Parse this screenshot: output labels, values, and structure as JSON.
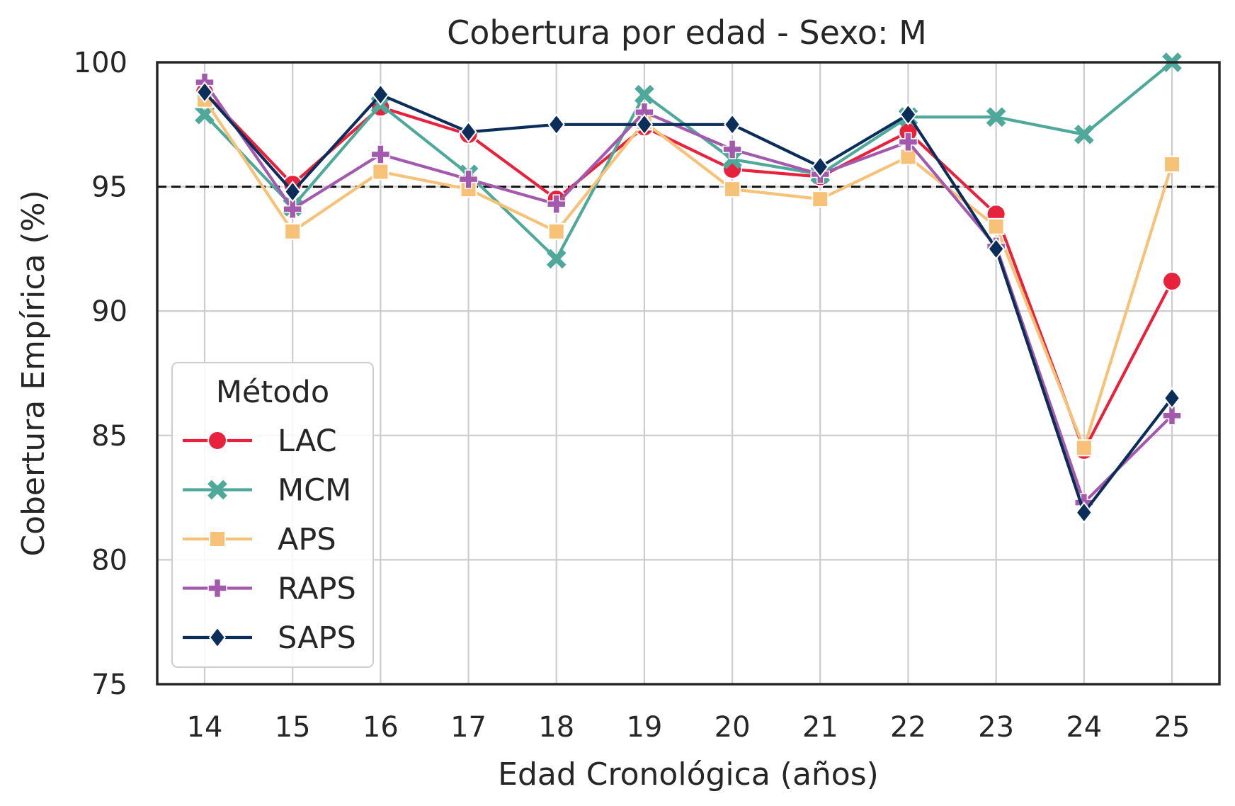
{
  "chart_data": {
    "type": "line",
    "title": "Cobertura por edad - Sexo: M",
    "xlabel": "Edad Cronológica (años)",
    "ylabel": "Cobertura Empírica (%)",
    "x": [
      14,
      15,
      16,
      17,
      18,
      19,
      20,
      21,
      22,
      23,
      24,
      25
    ],
    "x_tick_labels": [
      "14",
      "15",
      "16",
      "17",
      "18",
      "19",
      "20",
      "21",
      "22",
      "23",
      "24",
      "25"
    ],
    "yticks": [
      75,
      80,
      85,
      90,
      95,
      100
    ],
    "y_tick_labels": [
      "75",
      "80",
      "85",
      "90",
      "95",
      "100"
    ],
    "ylim": [
      75,
      100
    ],
    "reference_line": 95,
    "grid": true,
    "legend": {
      "title": "Método",
      "position": "lower-left"
    },
    "series": [
      {
        "name": "LAC",
        "color": "#e8213c",
        "marker": "circle",
        "values": [
          98.8,
          95.1,
          98.2,
          97.1,
          94.5,
          97.4,
          95.7,
          95.4,
          97.2,
          93.9,
          84.4,
          91.2
        ]
      },
      {
        "name": "MCM",
        "color": "#4ea99b",
        "marker": "x",
        "values": [
          97.9,
          94.2,
          98.3,
          95.5,
          92.1,
          98.7,
          96.1,
          95.5,
          97.8,
          97.8,
          97.1,
          100.0
        ]
      },
      {
        "name": "APS",
        "color": "#f7c277",
        "marker": "square",
        "values": [
          98.5,
          93.2,
          95.6,
          94.9,
          93.2,
          97.6,
          94.9,
          94.5,
          96.2,
          93.4,
          84.5,
          95.9
        ]
      },
      {
        "name": "RAPS",
        "color": "#a35aad",
        "marker": "plus",
        "values": [
          99.2,
          94.1,
          96.3,
          95.3,
          94.3,
          98.0,
          96.5,
          95.5,
          96.8,
          92.6,
          82.3,
          85.8
        ]
      },
      {
        "name": "SAPS",
        "color": "#0b2d5a",
        "marker": "diamond",
        "values": [
          98.8,
          94.8,
          98.7,
          97.2,
          97.5,
          97.5,
          97.5,
          95.8,
          97.9,
          92.5,
          81.9,
          86.5
        ]
      }
    ]
  }
}
